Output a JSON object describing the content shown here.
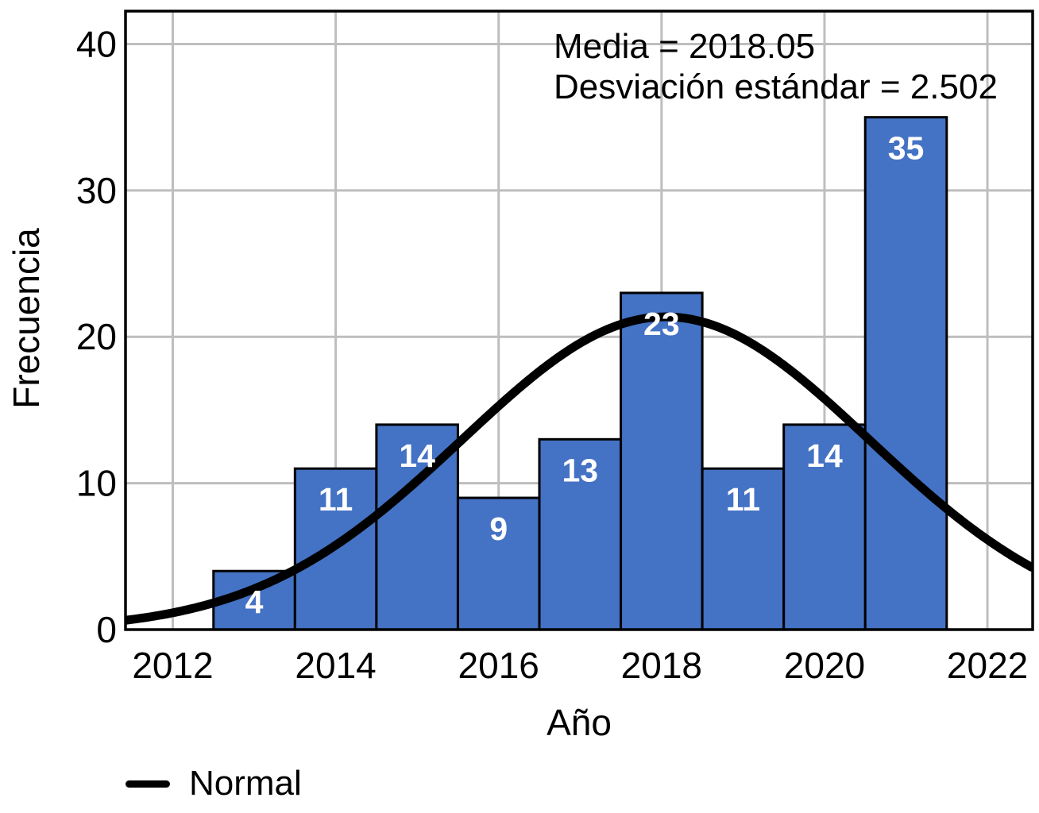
{
  "chart_data": {
    "type": "bar",
    "subtype": "histogram-with-normal-curve",
    "title": "",
    "xlabel": "Año",
    "ylabel": "Frecuencia",
    "categories": [
      2013,
      2014,
      2015,
      2016,
      2017,
      2018,
      2019,
      2020,
      2021
    ],
    "values": [
      4,
      11,
      14,
      9,
      13,
      23,
      11,
      14,
      35
    ],
    "bin_width": 1,
    "total_n": 134,
    "x_ticks": [
      2012,
      2014,
      2016,
      2018,
      2020,
      2022
    ],
    "y_ticks": [
      0,
      10,
      20,
      30,
      40
    ],
    "xlim": [
      2011.42,
      2022.555
    ],
    "ylim": [
      0,
      42.25
    ],
    "grid": true,
    "colors": {
      "bar_fill": "#4472C4",
      "bar_border": "#000000",
      "gridline": "#BEBEBE",
      "plot_border": "#000000",
      "curve": "#000000",
      "bar_label_text": "#ffffff"
    },
    "curve": {
      "name": "Normal",
      "mean": 2018.05,
      "sd": 2.502,
      "n": 134
    },
    "annotation": {
      "line1": "Media = 2018.05",
      "line2": "Desviación estándar = 2.502"
    },
    "legend": {
      "label": "Normal",
      "swatch": "line",
      "position": "bottom-left"
    }
  }
}
